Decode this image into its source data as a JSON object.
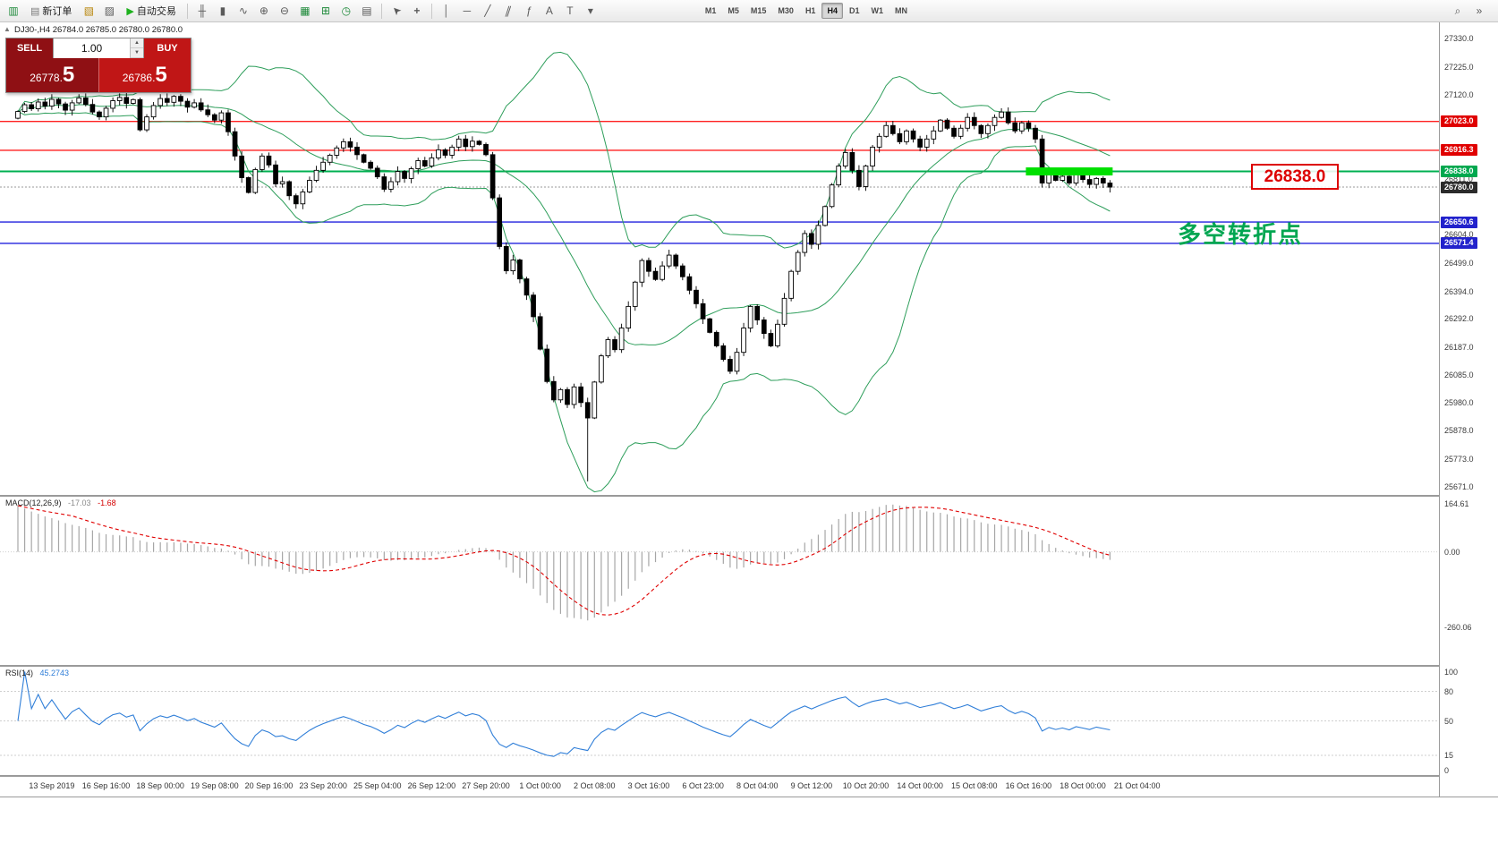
{
  "toolbar": {
    "new_order": "新订单",
    "autotrading": "自动交易",
    "timeframes": [
      "M1",
      "M5",
      "M15",
      "M30",
      "H1",
      "H4",
      "D1",
      "W1",
      "MN"
    ],
    "active_timeframe": "H4"
  },
  "one_click": {
    "sell_label": "SELL",
    "buy_label": "BUY",
    "volume": "1.00",
    "sell_price_small": "26778.",
    "sell_price_big": "5",
    "buy_price_small": "26786.",
    "buy_price_big": "5"
  },
  "chart_header": {
    "symbol_ohlc": "DJ30-,H4  26784.0 26785.0 26780.0 26780.0"
  },
  "annotations": {
    "price_box_text": "26838.0",
    "pivot_text": "多空转折点"
  },
  "indicators": {
    "macd": {
      "label": "MACD(12,26,9)",
      "main_value": "-17.03",
      "signal_value": "-1.68",
      "axis_labels": [
        164.61,
        0.0,
        -260.06
      ],
      "histogram_color": "#a6a6a6",
      "signal_color": "#e00000"
    },
    "rsi": {
      "label": "RSI(14)",
      "value": "45.2743",
      "axis_labels": [
        100,
        80,
        50,
        15,
        0
      ],
      "levels": [
        80,
        50,
        15
      ],
      "line_color": "#2f7ed8"
    }
  },
  "chart_data": {
    "type": "candlestick",
    "symbol": "DJ30-",
    "period": "H4",
    "ylim": [
      25640,
      27390
    ],
    "colors": {
      "up_candle": "#ffffff",
      "down_candle": "#000000",
      "outline": "#000000",
      "bollinger": "#2e9e5b",
      "bid_line": "#9a9a9a"
    },
    "closes": [
      27060,
      27085,
      27070,
      27095,
      27080,
      27105,
      27088,
      27065,
      27092,
      27110,
      27086,
      27058,
      27040,
      27072,
      27100,
      27112,
      27090,
      27104,
      26992,
      27040,
      27082,
      27108,
      27094,
      27116,
      27098,
      27076,
      27092,
      27066,
      27048,
      27028,
      27055,
      26985,
      26895,
      26815,
      26760,
      26845,
      26895,
      26862,
      26792,
      26800,
      26748,
      26718,
      26762,
      26805,
      26842,
      26872,
      26898,
      26925,
      26948,
      26928,
      26900,
      26872,
      26850,
      26818,
      26772,
      26800,
      26838,
      26812,
      26848,
      26878,
      26858,
      26888,
      26918,
      26898,
      26928,
      26958,
      26930,
      26950,
      26938,
      26900,
      26740,
      26560,
      26470,
      26510,
      26440,
      26380,
      26300,
      26180,
      26060,
      25992,
      26030,
      25975,
      26040,
      25982,
      25925,
      26058,
      26155,
      26215,
      26178,
      26258,
      26338,
      26428,
      26508,
      26468,
      26438,
      26488,
      26528,
      26488,
      26448,
      26398,
      26348,
      26292,
      26242,
      26192,
      26142,
      26098,
      26168,
      26258,
      26338,
      26288,
      26238,
      26192,
      26272,
      26368,
      26468,
      26538,
      26608,
      26568,
      26638,
      26708,
      26788,
      26858,
      26908,
      26842,
      26782,
      26858,
      26928,
      26968,
      27008,
      26978,
      26948,
      26988,
      26958,
      26928,
      26958,
      26988,
      27028,
      26998,
      26968,
      26998,
      27038,
      27008,
      26978,
      27008,
      27038,
      27058,
      27018,
      26988,
      27018,
      26998,
      26958,
      26795,
      26835,
      26805,
      26820,
      26795,
      26825,
      26808,
      26790,
      26812,
      26795,
      26780
    ],
    "wick_low_overrides": {
      "84": 25690
    },
    "bollinger": {
      "period": 20,
      "deviation": 2
    },
    "hlines": [
      {
        "price": 27023.0,
        "color": "#ff2020",
        "width": 1.4,
        "label_bg": "#e00000"
      },
      {
        "price": 26916.3,
        "color": "#ff2020",
        "width": 1.4,
        "label_bg": "#e00000"
      },
      {
        "price": 26838.0,
        "color": "#00b050",
        "width": 2.0,
        "label_bg": "#00a84f"
      },
      {
        "price": 26650.6,
        "color": "#2222dd",
        "width": 1.4,
        "label_bg": "#2222cc"
      },
      {
        "price": 26571.4,
        "color": "#2222dd",
        "width": 1.4,
        "label_bg": "#2222cc"
      }
    ],
    "current_price": 26780.0,
    "current_price_bg": "#2b2b2b",
    "grid_labels": [
      27330.0,
      27225.0,
      27120.0,
      26811.0,
      26604.0,
      26499.0,
      26394.0,
      26292.0,
      26187.0,
      26085.0,
      25980.0,
      25878.0,
      25773.0,
      25671.0
    ],
    "highlight_segment": {
      "price": 26838.0,
      "bar_start": 149,
      "bar_end": 161,
      "color": "#00e000"
    },
    "time_labels": [
      "13 Sep 2019",
      "16 Sep 16:00",
      "18 Sep 00:00",
      "19 Sep 08:00",
      "20 Sep 16:00",
      "23 Sep 20:00",
      "25 Sep 04:00",
      "26 Sep 12:00",
      "27 Sep 20:00",
      "1 Oct 00:00",
      "2 Oct 08:00",
      "3 Oct 16:00",
      "6 Oct 23:00",
      "8 Oct 04:00",
      "9 Oct 12:00",
      "10 Oct 20:00",
      "14 Oct 00:00",
      "15 Oct 08:00",
      "16 Oct 16:00",
      "18 Oct 00:00",
      "21 Oct 04:00"
    ]
  }
}
